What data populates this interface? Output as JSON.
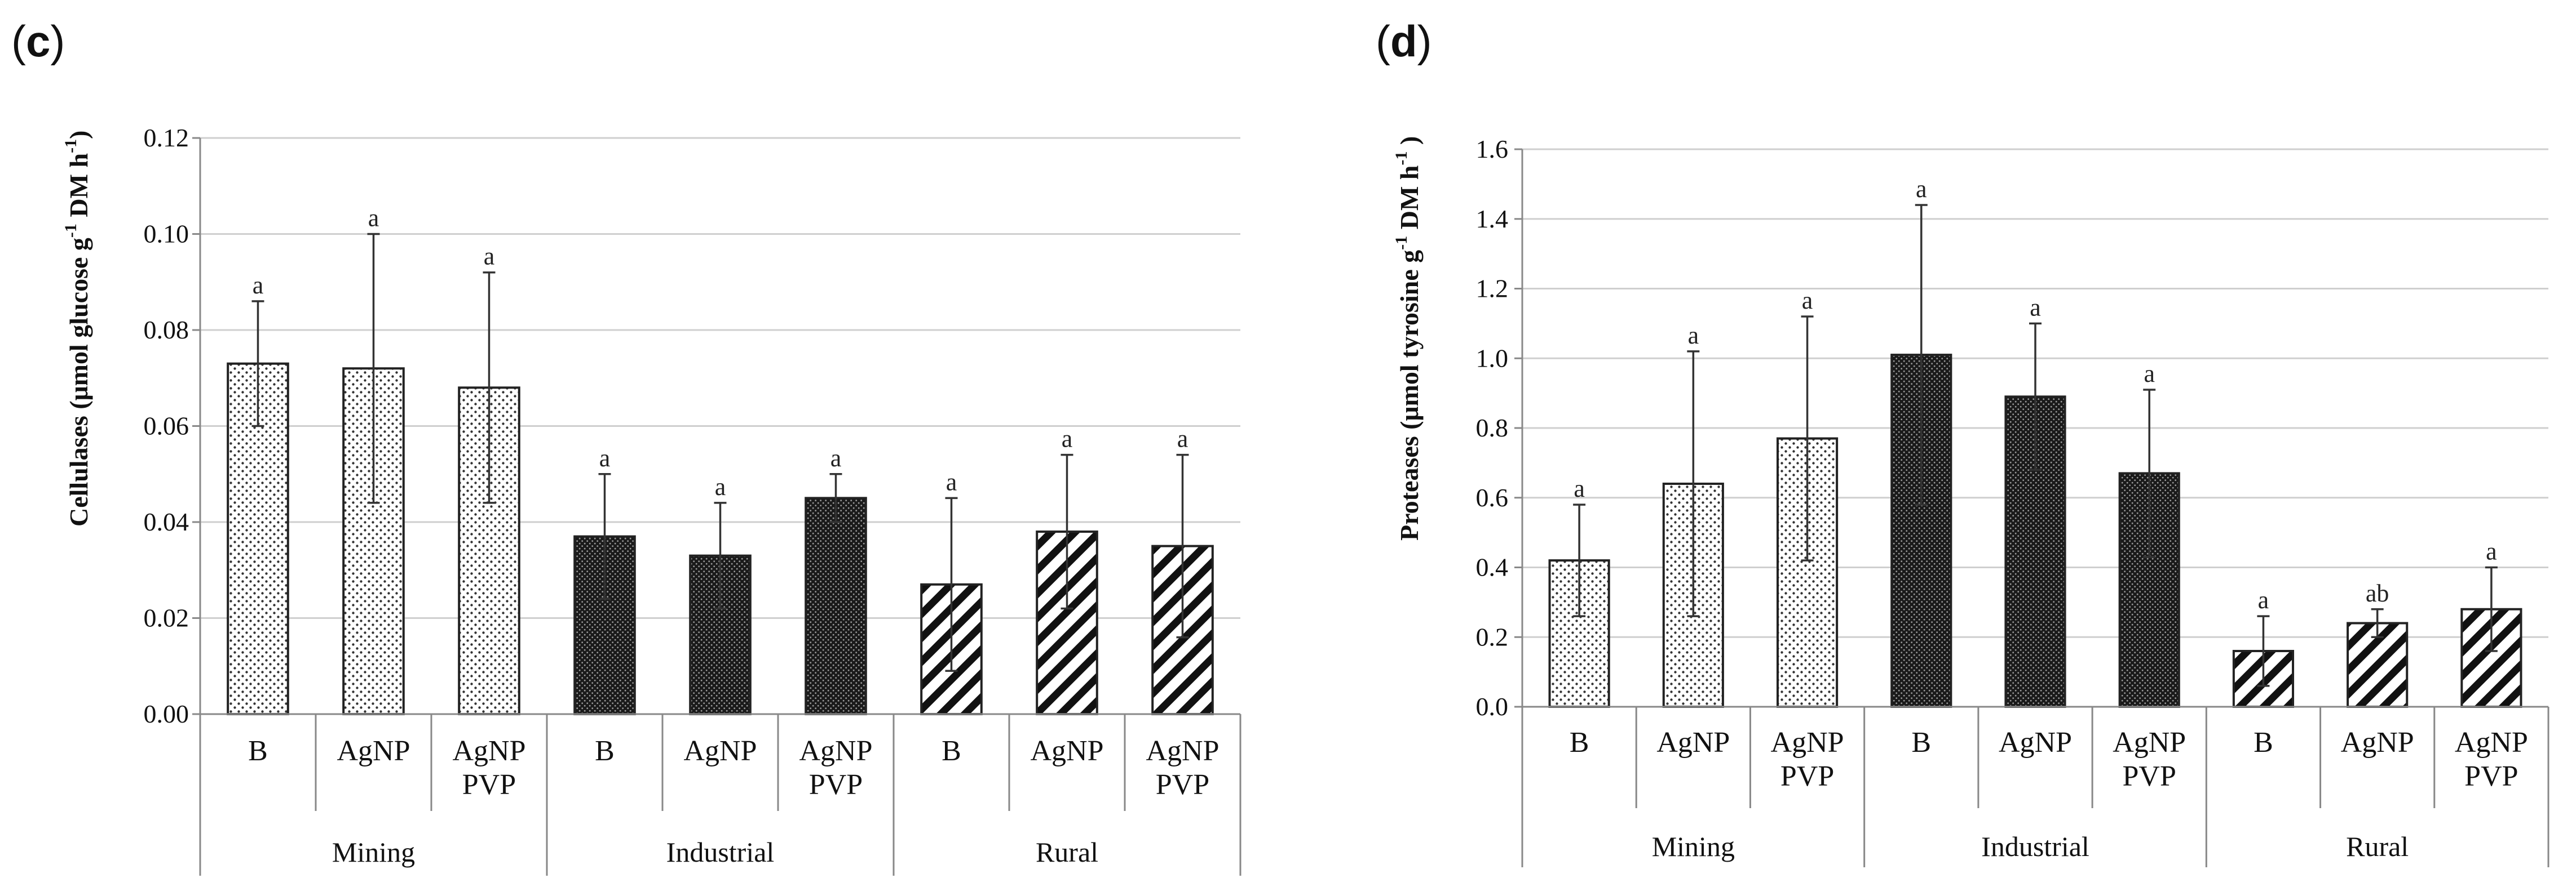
{
  "chart_data": [
    {
      "panel": "c",
      "type": "bar",
      "ylabel_main": "Cellulases (",
      "ylabel_mu": "μ",
      "ylabel_mid": "mol  glucose g",
      "ylabel_exp1": "-1",
      "ylabel_dm": " DM h",
      "ylabel_exp2": "-1",
      "ylabel_end": ")",
      "ylim": [
        0,
        0.12
      ],
      "ticks": [
        "0.00",
        "0.02",
        "0.04",
        "0.06",
        "0.08",
        "0.10",
        "0.12"
      ],
      "tick_values": [
        0,
        0.02,
        0.04,
        0.06,
        0.08,
        0.1,
        0.12
      ],
      "groups": [
        "Mining",
        "Industrial",
        "Rural"
      ],
      "categories": [
        [
          "B"
        ],
        [
          "AgNP"
        ],
        [
          "AgNP",
          "PVP"
        ],
        [
          "B"
        ],
        [
          "AgNP"
        ],
        [
          "AgNP",
          "PVP"
        ],
        [
          "B"
        ],
        [
          "AgNP"
        ],
        [
          "AgNP",
          "PVP"
        ]
      ],
      "values": [
        0.073,
        0.072,
        0.068,
        0.037,
        0.033,
        0.045,
        0.027,
        0.038,
        0.035
      ],
      "errors": [
        0.013,
        0.028,
        0.024,
        0.013,
        0.011,
        0.005,
        0.018,
        0.016,
        0.019
      ],
      "significance": [
        "a",
        "a",
        "a",
        "a",
        "a",
        "a",
        "a",
        "a",
        "a"
      ],
      "patterns": [
        "dots",
        "dots",
        "dots",
        "dense",
        "dense",
        "dense",
        "stripes",
        "stripes",
        "stripes"
      ]
    },
    {
      "panel": "d",
      "type": "bar",
      "ylabel_main": "Proteases (",
      "ylabel_mu": "μ",
      "ylabel_mid": "mol tyrosine g",
      "ylabel_exp1": "-1",
      "ylabel_dm": " DM h",
      "ylabel_exp2": "-1",
      "ylabel_end": " )",
      "ylim": [
        0,
        1.6
      ],
      "ticks": [
        "0.0",
        "0.2",
        "0.4",
        "0.6",
        "0.8",
        "1.0",
        "1.2",
        "1.4",
        "1.6"
      ],
      "tick_values": [
        0,
        0.2,
        0.4,
        0.6,
        0.8,
        1.0,
        1.2,
        1.4,
        1.6
      ],
      "groups": [
        "Mining",
        "Industrial",
        "Rural"
      ],
      "categories": [
        [
          "B"
        ],
        [
          "AgNP"
        ],
        [
          "AgNP",
          "PVP"
        ],
        [
          "B"
        ],
        [
          "AgNP"
        ],
        [
          "AgNP",
          "PVP"
        ],
        [
          "B"
        ],
        [
          "AgNP"
        ],
        [
          "AgNP",
          "PVP"
        ]
      ],
      "values": [
        0.42,
        0.64,
        0.77,
        1.01,
        0.89,
        0.67,
        0.16,
        0.24,
        0.28
      ],
      "errors": [
        0.16,
        0.38,
        0.35,
        0.43,
        0.21,
        0.24,
        0.1,
        0.04,
        0.12
      ],
      "significance": [
        "a",
        "a",
        "a",
        "a",
        "a",
        "a",
        "a",
        "ab",
        "a"
      ],
      "patterns": [
        "dots",
        "dots",
        "dots",
        "dense",
        "dense",
        "dense",
        "stripes",
        "stripes",
        "stripes"
      ]
    }
  ]
}
